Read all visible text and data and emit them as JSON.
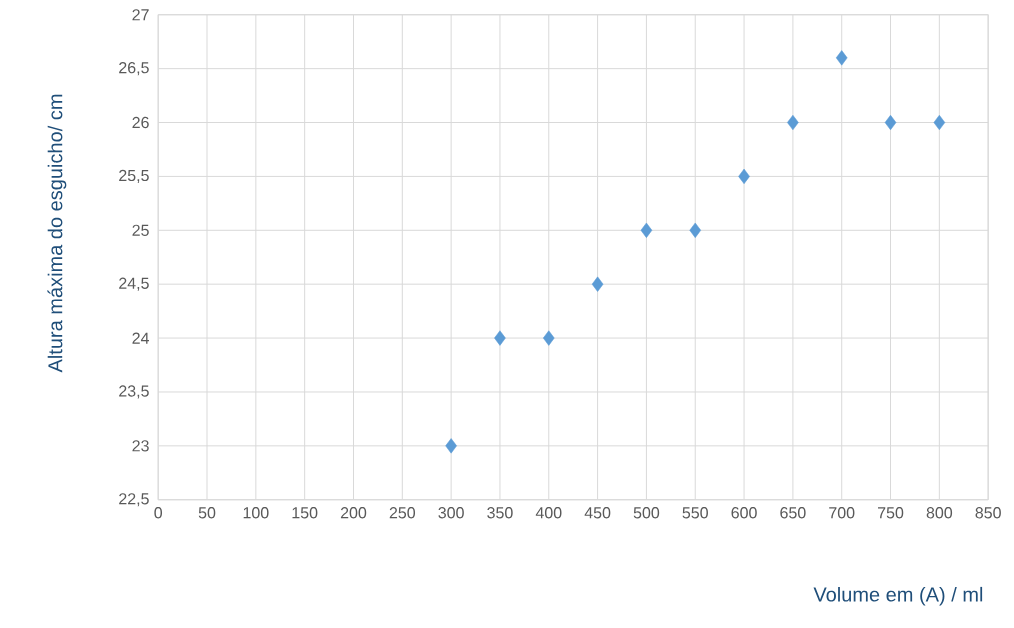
{
  "chart_data": {
    "type": "scatter",
    "xlabel": "Volume em (A) / ml",
    "ylabel": "Altura máxima do esguicho/ cm",
    "x": [
      300,
      350,
      400,
      450,
      500,
      550,
      600,
      650,
      700,
      750,
      800
    ],
    "values": [
      23,
      24,
      24,
      24.5,
      25,
      25,
      25.5,
      26,
      26.6,
      26,
      26
    ],
    "color": "#5b9bd5",
    "marker": "diamond",
    "grid": true,
    "xlim": [
      0,
      850
    ],
    "xticks": [
      0,
      50,
      100,
      150,
      200,
      250,
      300,
      350,
      400,
      450,
      500,
      550,
      600,
      650,
      700,
      750,
      800,
      850
    ],
    "ylim": [
      22.5,
      27
    ],
    "yticks": [
      {
        "value": 22.5,
        "label": "22,5"
      },
      23,
      {
        "value": 23.5,
        "label": "23,5"
      },
      24,
      {
        "value": 24.5,
        "label": "24,5"
      },
      25,
      {
        "value": 25.5,
        "label": "25,5"
      },
      26,
      {
        "value": 26.5,
        "label": "26,5"
      },
      27
    ]
  }
}
